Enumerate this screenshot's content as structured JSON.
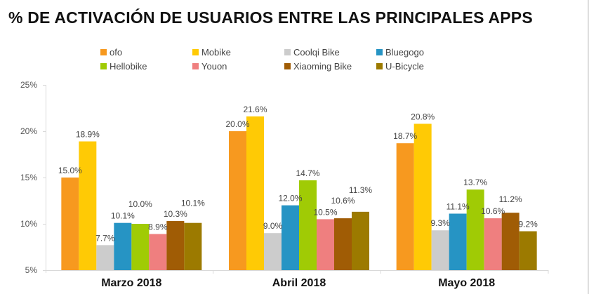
{
  "title": "% DE ACTIVACIÓN DE USUARIOS ENTRE LAS PRINCIPALES APPS",
  "chart_data": {
    "type": "bar",
    "title": "% DE ACTIVACIÓN DE USUARIOS ENTRE LAS PRINCIPALES APPS",
    "xlabel": "",
    "ylabel": "",
    "ylim": [
      5,
      25
    ],
    "yticks": [
      "5%",
      "10%",
      "15%",
      "20%",
      "25%"
    ],
    "grid": false,
    "legend": "top",
    "categories": [
      "Marzo 2018",
      "Abril 2018",
      "Mayo 2018"
    ],
    "series": [
      {
        "name": "ofo",
        "color": "#F7991F",
        "values": [
          15.0,
          20.0,
          18.7
        ],
        "labels": [
          "15.0%",
          "20.0%",
          "18.7%"
        ]
      },
      {
        "name": "Mobike",
        "color": "#FFCA05",
        "values": [
          18.9,
          21.6,
          20.8
        ],
        "labels": [
          "18.9%",
          "21.6%",
          "20.8%"
        ]
      },
      {
        "name": "Coolqi Bike",
        "color": "#CCCCCC",
        "values": [
          7.7,
          9.0,
          9.3
        ],
        "labels": [
          "7.7%",
          "9.0%",
          "9.3%"
        ]
      },
      {
        "name": "Bluegogo",
        "color": "#2694C4",
        "values": [
          10.1,
          12.0,
          11.1
        ],
        "labels": [
          "10.1%",
          "12.0%",
          "11.1%"
        ]
      },
      {
        "name": "Hellobike",
        "color": "#A0CB05",
        "values": [
          10.0,
          14.7,
          13.7
        ],
        "labels": [
          "10.0%",
          "14.7%",
          "13.7%"
        ]
      },
      {
        "name": "Youon",
        "color": "#EF7F7F",
        "values": [
          8.9,
          10.5,
          10.6
        ],
        "labels": [
          "8.9%",
          "10.5%",
          "10.6%"
        ]
      },
      {
        "name": "Xiaoming Bike",
        "color": "#A05C05",
        "values": [
          10.3,
          10.6,
          11.2
        ],
        "labels": [
          "10.3%",
          "10.6%",
          "11.2%"
        ]
      },
      {
        "name": "U-Bicycle",
        "color": "#9C7A00",
        "values": [
          10.1,
          11.3,
          9.2
        ],
        "labels": [
          "10.1%",
          "11.3%",
          "9.2%"
        ]
      }
    ]
  }
}
